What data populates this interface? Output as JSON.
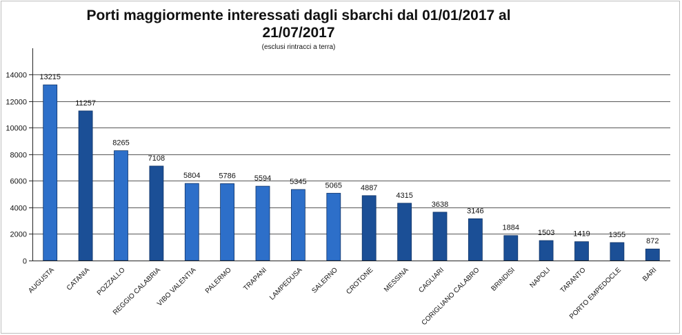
{
  "chart_data": {
    "type": "bar",
    "title": "Porti maggiormente interessati dagli sbarchi dal 01/01/2017 al 21/07/2017",
    "title_lines": [
      "Porti maggiormente interessati dagli sbarchi dal 01/01/2017 al",
      "21/07/2017"
    ],
    "subtitle": "(esclusi rintracci  a terra)",
    "xlabel": "",
    "ylabel": "",
    "categories": [
      "AUGUSTA",
      "CATANIA",
      "POZZALLO",
      "REGGIO CALABRIA",
      "VIBO VALENTIA",
      "PALERMO",
      "TRAPANI",
      "LAMPEDUSA",
      "SALERNO",
      "CROTONE",
      "MESSINA",
      "CAGLIARI",
      "CORIGLIANO CALABRO",
      "BRINDISI",
      "NAPOLI",
      "TARANTO",
      "PORTO EMPEDOCLE",
      "BARI"
    ],
    "values": [
      13215,
      11257,
      8265,
      7108,
      5804,
      5786,
      5594,
      5345,
      5065,
      4887,
      4315,
      3638,
      3146,
      1884,
      1503,
      1419,
      1355,
      872
    ],
    "value_labels": [
      "13215",
      "11257",
      "8265",
      "7108",
      "5804",
      "5786",
      "5594",
      "5345",
      "5065",
      "4887",
      "4315",
      "3638",
      "3146",
      "1884",
      "1503",
      "1419",
      "1355",
      "872"
    ],
    "ylim": [
      0,
      14000
    ],
    "yticks": [
      0,
      2000,
      4000,
      6000,
      8000,
      10000,
      12000,
      14000
    ],
    "ytick_labels": [
      "0",
      "2000",
      "4000",
      "6000",
      "8000",
      "10000",
      "12000",
      "14000"
    ],
    "grid": true,
    "legend": "none",
    "colors": {
      "bar_light": "#2d6fc9",
      "bar_dark": "#1b4f96",
      "bar_edge": "#0f3366",
      "grid": "#555555",
      "axis": "#222222",
      "frame": "#bdbdbd"
    },
    "bar_shades": [
      "light",
      "dark",
      "light",
      "dark",
      "light",
      "light",
      "light",
      "light",
      "light",
      "dark",
      "dark",
      "dark",
      "dark",
      "dark",
      "dark",
      "dark",
      "dark",
      "dark"
    ]
  }
}
